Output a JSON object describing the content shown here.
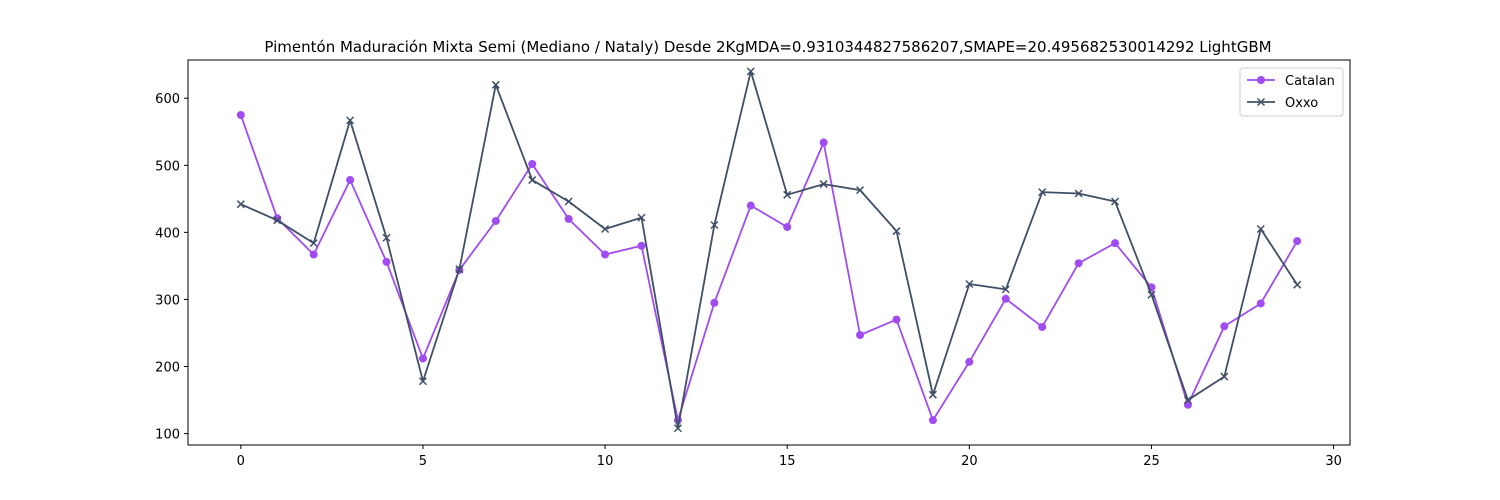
{
  "chart_data": {
    "type": "line",
    "title": "Pimentón Maduración Mixta Semi (Mediano / Nataly) Desde 2KgMDA=0.9310344827586207,SMAPE=20.495682530014292 LightGBM",
    "xlabel": "",
    "ylabel": "",
    "xlim": [
      -1.45,
      30.45
    ],
    "ylim": [
      83,
      657
    ],
    "x": [
      0,
      1,
      2,
      3,
      4,
      5,
      6,
      7,
      8,
      9,
      10,
      11,
      12,
      13,
      14,
      15,
      16,
      17,
      18,
      19,
      20,
      21,
      22,
      23,
      24,
      25,
      26,
      27,
      28,
      29
    ],
    "x_ticks": [
      0,
      5,
      10,
      15,
      20,
      25,
      30
    ],
    "y_ticks": [
      100,
      200,
      300,
      400,
      500,
      600
    ],
    "grid": false,
    "legend_position": "top-right",
    "series": [
      {
        "name": "Catalan",
        "color": "#a04cf0",
        "marker": "circle",
        "values": [
          575,
          421,
          367,
          478,
          356,
          212,
          344,
          417,
          502,
          420,
          367,
          380,
          120,
          295,
          440,
          408,
          534,
          247,
          270,
          120,
          207,
          301,
          259,
          354,
          384,
          318,
          143,
          260,
          294,
          387
        ]
      },
      {
        "name": "Oxxo",
        "color": "#3f4f66",
        "marker": "x",
        "values": [
          442,
          418,
          384,
          567,
          392,
          178,
          345,
          620,
          478,
          446,
          405,
          422,
          108,
          411,
          640,
          456,
          472,
          463,
          402,
          158,
          323,
          315,
          460,
          458,
          446,
          307,
          150,
          185,
          405,
          322
        ]
      }
    ]
  }
}
